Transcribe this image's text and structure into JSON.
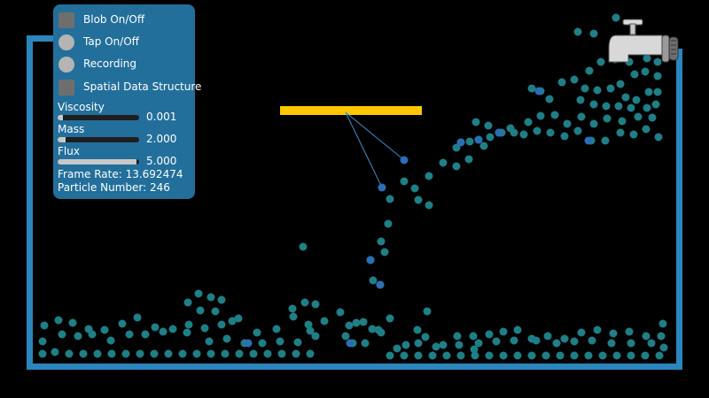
{
  "panel": {
    "toggles": [
      {
        "label": "Blob On/Off",
        "style": "square"
      },
      {
        "label": "Tap On/Off",
        "style": "circle"
      },
      {
        "label": "Recording",
        "style": "circle"
      },
      {
        "label": "Spatial Data Structure",
        "style": "square"
      }
    ],
    "sliders": [
      {
        "label": "Viscosity",
        "value": "0.001",
        "fill": 0.0
      },
      {
        "label": "Mass",
        "value": "2.000",
        "fill": 0.1
      },
      {
        "label": "Flux",
        "value": "5.000",
        "fill": 0.97
      }
    ],
    "frame_rate_label": "Frame Rate: 13.692474",
    "particle_label": "Particle Number: 246"
  },
  "colors": {
    "panel": "#236f9b",
    "container": "#2a86bd",
    "barrier": "#ffc800",
    "particle": "#1f7f86",
    "particle_alt": "#2a6fb5",
    "tether": "#3c8fd0"
  },
  "icons": {
    "tap": "water-tap-icon"
  }
}
